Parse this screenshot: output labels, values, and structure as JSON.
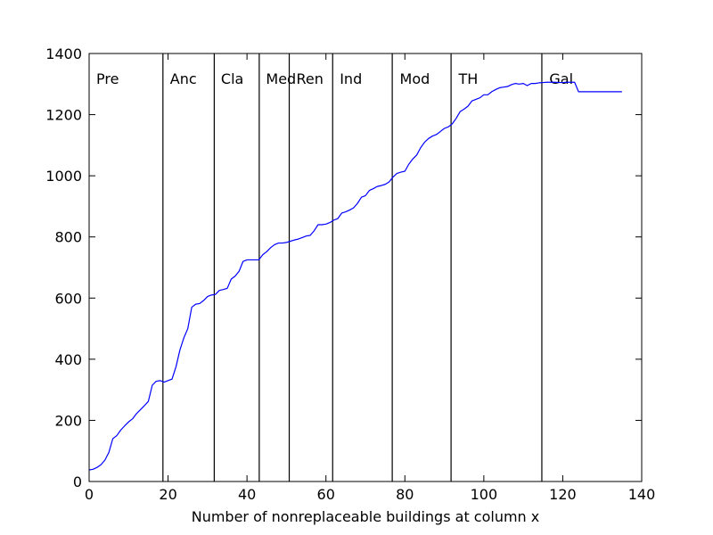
{
  "chart_data": {
    "type": "line",
    "title": "",
    "xlabel": "Number of nonreplaceable buildings at column x",
    "ylabel": "",
    "xlim": [
      0,
      140
    ],
    "ylim": [
      0,
      1400
    ],
    "xticks": [
      0,
      20,
      40,
      60,
      80,
      100,
      120,
      140
    ],
    "yticks": [
      0,
      200,
      400,
      600,
      800,
      1000,
      1200,
      1400
    ],
    "grid": false,
    "line_color": "#0000ff",
    "era_lines": [
      {
        "label": "Pre",
        "x": 0,
        "label_x": 1.8
      },
      {
        "label": "Anc",
        "x": 18.7,
        "label_x": 20.5
      },
      {
        "label": "Cla",
        "x": 31.7,
        "label_x": 33.4
      },
      {
        "label": "Med",
        "x": 43.1,
        "label_x": 44.8
      },
      {
        "label": "Ren",
        "x": 50.7,
        "label_x": 52.5
      },
      {
        "label": "Ind",
        "x": 61.7,
        "label_x": 63.5
      },
      {
        "label": "Mod",
        "x": 76.8,
        "label_x": 78.7
      },
      {
        "label": "TH",
        "x": 91.7,
        "label_x": 93.6
      },
      {
        "label": "Gal",
        "x": 114.7,
        "label_x": 116.6
      }
    ],
    "series": [
      {
        "values": [
          [
            0,
            38
          ],
          [
            1,
            40
          ],
          [
            2,
            46
          ],
          [
            3,
            55
          ],
          [
            4,
            70
          ],
          [
            5,
            95
          ],
          [
            6,
            140
          ],
          [
            7,
            150
          ],
          [
            8,
            168
          ],
          [
            9,
            182
          ],
          [
            10,
            195
          ],
          [
            11,
            205
          ],
          [
            12,
            222
          ],
          [
            13,
            235
          ],
          [
            14,
            248
          ],
          [
            15,
            262
          ],
          [
            16,
            315
          ],
          [
            17,
            328
          ],
          [
            18,
            330
          ],
          [
            19,
            325
          ],
          [
            20,
            330
          ],
          [
            21,
            335
          ],
          [
            22,
            375
          ],
          [
            23,
            430
          ],
          [
            24,
            470
          ],
          [
            25,
            500
          ],
          [
            26,
            570
          ],
          [
            27,
            580
          ],
          [
            28,
            582
          ],
          [
            29,
            592
          ],
          [
            30,
            605
          ],
          [
            31,
            610
          ],
          [
            32,
            612
          ],
          [
            33,
            625
          ],
          [
            34,
            628
          ],
          [
            35,
            632
          ],
          [
            36,
            662
          ],
          [
            37,
            672
          ],
          [
            38,
            688
          ],
          [
            39,
            720
          ],
          [
            40,
            725
          ],
          [
            41,
            725
          ],
          [
            42,
            725
          ],
          [
            43,
            725
          ],
          [
            44,
            742
          ],
          [
            45,
            752
          ],
          [
            46,
            765
          ],
          [
            47,
            775
          ],
          [
            48,
            780
          ],
          [
            49,
            780
          ],
          [
            50,
            782
          ],
          [
            51,
            786
          ],
          [
            52,
            790
          ],
          [
            53,
            793
          ],
          [
            54,
            798
          ],
          [
            55,
            803
          ],
          [
            56,
            805
          ],
          [
            57,
            820
          ],
          [
            58,
            840
          ],
          [
            59,
            840
          ],
          [
            60,
            842
          ],
          [
            61,
            847
          ],
          [
            62,
            855
          ],
          [
            63,
            860
          ],
          [
            64,
            878
          ],
          [
            65,
            882
          ],
          [
            66,
            888
          ],
          [
            67,
            895
          ],
          [
            68,
            910
          ],
          [
            69,
            930
          ],
          [
            70,
            935
          ],
          [
            71,
            952
          ],
          [
            72,
            958
          ],
          [
            73,
            965
          ],
          [
            74,
            968
          ],
          [
            75,
            972
          ],
          [
            76,
            980
          ],
          [
            77,
            996
          ],
          [
            78,
            1008
          ],
          [
            79,
            1012
          ],
          [
            80,
            1015
          ],
          [
            81,
            1038
          ],
          [
            82,
            1055
          ],
          [
            83,
            1068
          ],
          [
            84,
            1092
          ],
          [
            85,
            1110
          ],
          [
            86,
            1122
          ],
          [
            87,
            1130
          ],
          [
            88,
            1135
          ],
          [
            89,
            1145
          ],
          [
            90,
            1155
          ],
          [
            91,
            1160
          ],
          [
            92,
            1170
          ],
          [
            93,
            1188
          ],
          [
            94,
            1210
          ],
          [
            95,
            1218
          ],
          [
            96,
            1228
          ],
          [
            97,
            1245
          ],
          [
            98,
            1250
          ],
          [
            99,
            1255
          ],
          [
            100,
            1265
          ],
          [
            101,
            1265
          ],
          [
            102,
            1275
          ],
          [
            103,
            1282
          ],
          [
            104,
            1288
          ],
          [
            105,
            1290
          ],
          [
            106,
            1292
          ],
          [
            107,
            1298
          ],
          [
            108,
            1302
          ],
          [
            109,
            1300
          ],
          [
            110,
            1302
          ],
          [
            111,
            1295
          ],
          [
            112,
            1302
          ],
          [
            113,
            1302
          ],
          [
            114,
            1304
          ],
          [
            115,
            1305
          ],
          [
            116,
            1306
          ],
          [
            117,
            1306
          ],
          [
            118,
            1306
          ],
          [
            119,
            1305
          ],
          [
            120,
            1305
          ],
          [
            121,
            1306
          ],
          [
            122,
            1306
          ],
          [
            123,
            1306
          ],
          [
            124,
            1275
          ],
          [
            125,
            1275
          ],
          [
            126,
            1275
          ],
          [
            127,
            1275
          ],
          [
            128,
            1275
          ],
          [
            129,
            1275
          ],
          [
            130,
            1275
          ],
          [
            131,
            1275
          ],
          [
            132,
            1275
          ],
          [
            133,
            1275
          ],
          [
            134,
            1275
          ],
          [
            135,
            1275
          ]
        ]
      }
    ]
  }
}
